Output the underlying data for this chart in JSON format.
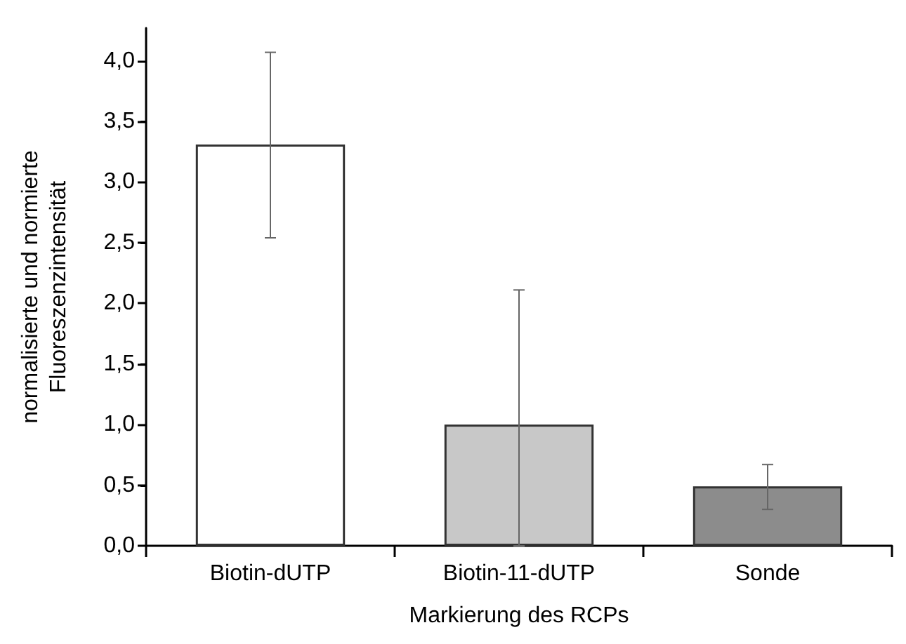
{
  "chart_data": {
    "type": "bar",
    "xlabel": "Markierung des RCPs",
    "ylabel": "normalisierte und normierte\nFluoreszenzintensität",
    "categories": [
      "Biotin-dUTP",
      "Biotin-11-dUTP",
      "Sonde"
    ],
    "values": [
      3.31,
      1.0,
      0.49
    ],
    "colors": [
      "#ffffff",
      "#c8c8c8",
      "#8c8c8c"
    ],
    "errors": [
      [
        2.54,
        4.07
      ],
      [
        0,
        2.11
      ],
      [
        0.3,
        0.67
      ]
    ],
    "ylim": [
      0,
      4.27
    ],
    "yticks": [
      {
        "value": 0,
        "label": "0,0"
      },
      {
        "value": 0.5,
        "label": "0,5"
      },
      {
        "value": 1,
        "label": "1,0"
      },
      {
        "value": 1.5,
        "label": "1,5"
      },
      {
        "value": 2,
        "label": "2,0"
      },
      {
        "value": 2.5,
        "label": "2,5"
      },
      {
        "value": 3,
        "label": "3,0"
      },
      {
        "value": 3.5,
        "label": "3,5"
      },
      {
        "value": 4,
        "label": "4,0"
      }
    ],
    "grid": false
  }
}
